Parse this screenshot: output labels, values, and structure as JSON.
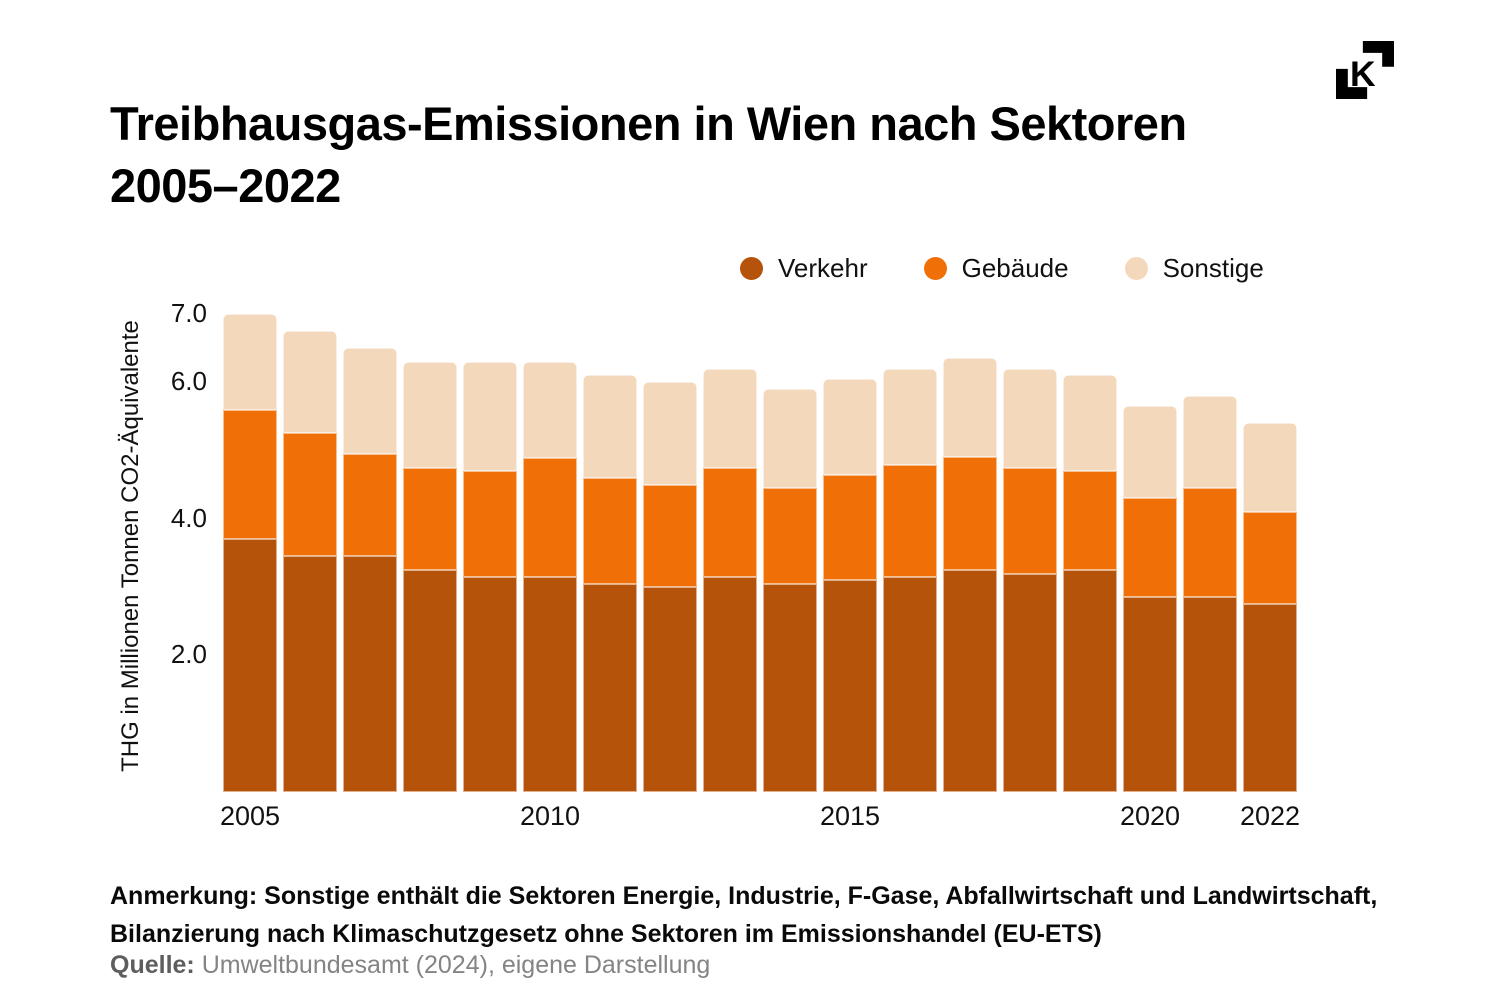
{
  "header": {
    "title": "Treibhausgas-Emissionen in Wien nach Sektoren 2005–2022",
    "logo_letter": "K"
  },
  "chart_data": {
    "type": "bar",
    "stacked": true,
    "title": "Treibhausgas-Emissionen in Wien nach Sektoren 2005–2022",
    "categories": [
      2005,
      2006,
      2007,
      2008,
      2009,
      2010,
      2011,
      2012,
      2013,
      2014,
      2015,
      2016,
      2017,
      2018,
      2019,
      2020,
      2021,
      2022
    ],
    "series": [
      {
        "name": "Verkehr",
        "color": "#b5530b",
        "values": [
          3.7,
          3.45,
          3.45,
          3.25,
          3.15,
          3.15,
          3.05,
          3.0,
          3.15,
          3.05,
          3.1,
          3.15,
          3.25,
          3.2,
          3.25,
          2.85,
          2.85,
          2.75
        ]
      },
      {
        "name": "Gebäude",
        "color": "#f06f06",
        "values": [
          1.9,
          1.8,
          1.5,
          1.5,
          1.55,
          1.75,
          1.55,
          1.5,
          1.6,
          1.4,
          1.55,
          1.65,
          1.65,
          1.55,
          1.45,
          1.45,
          1.6,
          1.35
        ]
      },
      {
        "name": "Sonstige",
        "color": "#f4d8bc",
        "values": [
          1.4,
          1.5,
          1.55,
          1.55,
          1.6,
          1.4,
          1.5,
          1.5,
          1.45,
          1.45,
          1.4,
          1.4,
          1.45,
          1.45,
          1.4,
          1.35,
          1.35,
          1.3
        ]
      }
    ],
    "totals": [
      7.0,
      6.75,
      6.5,
      6.3,
      6.3,
      6.3,
      6.1,
      6.0,
      6.2,
      5.9,
      6.05,
      6.2,
      6.35,
      6.2,
      6.1,
      5.65,
      5.8,
      5.4
    ],
    "xlabel": "",
    "ylabel": "THG in Millionen Tonnen CO2-Äquivalente",
    "ylim": [
      0,
      7.0
    ],
    "yticks": [
      2.0,
      4.0,
      6.0,
      7.0
    ],
    "xticks": [
      2005,
      2010,
      2015,
      2020,
      2022
    ],
    "grid": false,
    "legend_position": "top-right"
  },
  "footer": {
    "note": "Anmerkung: Sonstige enthält die Sektoren Energie, Industrie, F-Gase, Abfallwirtschaft und Landwirtschaft, Bilanzierung nach Klimaschutzgesetz ohne Sektoren im Emissionshandel (EU-ETS)",
    "source_label": "Quelle:",
    "source_text": " Umweltbundesamt (2024), eigene Darstellung"
  }
}
